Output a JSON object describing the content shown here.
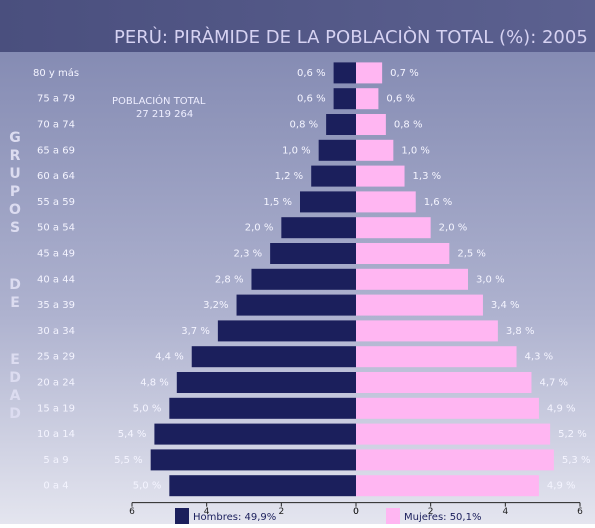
{
  "chart_data": {
    "type": "pyramid",
    "title": "PERÙ: PIRÀMIDE DE LA POBLACIÒN TOTAL (%): 2005",
    "y_label": [
      "GRUPOS",
      "DE",
      "EDAD"
    ],
    "annotation": [
      "POBLACIÓN TOTAL",
      "27 219 264"
    ],
    "categories": [
      "80 y más",
      "75 a 79",
      "70 a 74",
      "65 a 69",
      "60 a 64",
      "55 a 59",
      "50 a 54",
      "45 a 49",
      "40 a 44",
      "35 a 39",
      "30 a 34",
      "25 a 29",
      "20 a 24",
      "15 a 19",
      "10 a 14",
      "5 a 9",
      "0 a 4"
    ],
    "series": [
      {
        "name": "Hombres: 49,9%",
        "color": "#1b1f5c",
        "values": [
          0.6,
          0.6,
          0.8,
          1.0,
          1.2,
          1.5,
          2.0,
          2.3,
          2.8,
          3.2,
          3.7,
          4.4,
          4.8,
          5.0,
          5.4,
          5.5,
          5.0
        ],
        "value_labels": [
          "0,6 %",
          "0,6 %",
          "0,8 %",
          "1,0 %",
          "1,2 %",
          "1,5 %",
          "2,0 %",
          "2,3 %",
          "2,8 %",
          "3,2%",
          "3,7 %",
          "4,4 %",
          "4,8 %",
          "5,0 %",
          "5,4 %",
          "5,5 %",
          "5,0 %"
        ]
      },
      {
        "name": "Mujeres: 50,1%",
        "color": "#ffb6f2",
        "values": [
          0.7,
          0.6,
          0.8,
          1.0,
          1.3,
          1.6,
          2.0,
          2.5,
          3.0,
          3.4,
          3.8,
          4.3,
          4.7,
          4.9,
          5.2,
          5.3,
          4.9
        ],
        "value_labels": [
          "0,7 %",
          "0,6 %",
          "0,8 %",
          "1,0 %",
          "1,3 %",
          "1,6 %",
          "2,0 %",
          "2,5 %",
          "3,0 %",
          "3,4 %",
          "3,8 %",
          "4,3 %",
          "4,7 %",
          "4,9 %",
          "5,2 %",
          "5,3 %",
          "4,9 %"
        ]
      }
    ],
    "xlim": [
      0,
      6
    ],
    "xticks": [
      0,
      2,
      4,
      6
    ]
  }
}
